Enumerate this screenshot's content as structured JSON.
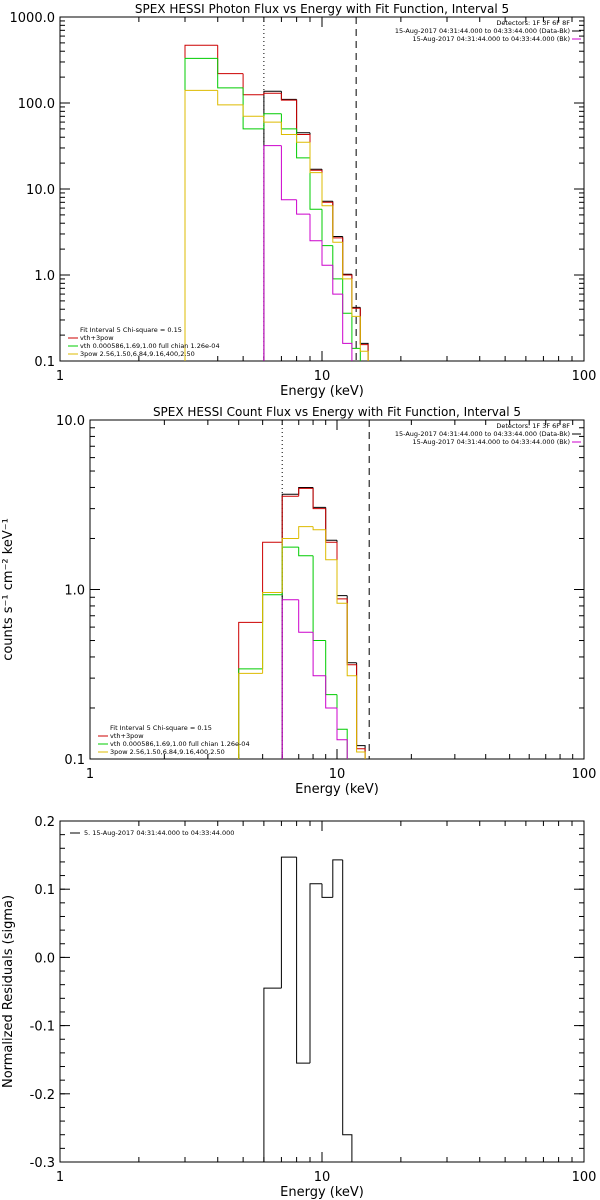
{
  "chart_data": [
    {
      "type": "line",
      "title": "SPEX HESSI Photon Flux vs Energy with Fit Function, Interval 5",
      "xlabel": "Energy (keV)",
      "ylabel": "",
      "xscale": "log",
      "yscale": "log",
      "xlim": [
        1,
        100
      ],
      "ylim": [
        0.1,
        1000
      ],
      "xticks": [
        "1",
        "10",
        "100"
      ],
      "yticks": [
        "0.1",
        "1.0",
        "10.0",
        "100.0",
        "1000.0"
      ],
      "info_lines": [
        "Detectors: 1F 3F 6F 8F",
        "15-Aug-2017 04:31:44.000 to 04:33:44.000 (Data-Bk)",
        "15-Aug-2017 04:31:44.000 to 04:33:44.000 (Bk)"
      ],
      "info_colors": [
        "",
        "#000000",
        "#cc00cc"
      ],
      "fit_lines": [
        "Fit Interval 5   Chi-square = 0.15",
        "vth+3pow",
        "vth 0.000586,1.69,1.00  full chian 1.26e-04",
        "3pow 2.56,1.50,6.84,9.16,400,2.50"
      ],
      "fit_colors": [
        "",
        "#cc0000",
        "#00cc00",
        "#ddbb00"
      ],
      "markers": [
        {
          "x": 6,
          "style": "dotted"
        },
        {
          "x": 13.5,
          "style": "dashed"
        }
      ],
      "edges": [
        3,
        4,
        5,
        6,
        7,
        8,
        9,
        10,
        11,
        12,
        13,
        14,
        15,
        16
      ],
      "series": [
        {
          "color": "#000000",
          "values": [
            null,
            null,
            null,
            137,
            110,
            45,
            17,
            7.2,
            2.8,
            1.02,
            0.42,
            0.16,
            null
          ]
        },
        {
          "color": "#cc0000",
          "values": [
            470,
            220,
            125,
            130,
            108,
            43,
            16.5,
            7.0,
            2.7,
            1.0,
            0.41,
            0.155,
            null
          ]
        },
        {
          "color": "#00cc00",
          "values": [
            330,
            150,
            50,
            75,
            50,
            23,
            5.8,
            2.2,
            0.9,
            0.36,
            0.14,
            null,
            null
          ]
        },
        {
          "color": "#ddbb00",
          "values": [
            140,
            95,
            70,
            60,
            43,
            35,
            15.5,
            6.4,
            2.4,
            0.9,
            0.33,
            0.13,
            null
          ]
        },
        {
          "color": "#cc00cc",
          "values": [
            null,
            null,
            null,
            32,
            7.5,
            5.1,
            2.5,
            1.3,
            0.6,
            0.16,
            null,
            null,
            null
          ]
        }
      ]
    },
    {
      "type": "line",
      "title": "SPEX HESSI Count Flux vs Energy with Fit Function, Interval 5",
      "xlabel": "Energy (keV)",
      "ylabel": "counts s⁻¹ cm⁻² keV⁻¹",
      "xscale": "log",
      "yscale": "log",
      "xlim": [
        1,
        100
      ],
      "ylim": [
        0.1,
        10
      ],
      "xticks": [
        "1",
        "10",
        "100"
      ],
      "yticks": [
        "0.1",
        "1.0",
        "10.0"
      ],
      "info_lines": [
        "Detectors: 1F 3F 6F 8F",
        "15-Aug-2017 04:31:44.000 to 04:33:44.000 (Data-Bk)",
        "15-Aug-2017 04:31:44.000 to 04:33:44.000 (Bk)"
      ],
      "info_colors": [
        "",
        "#000000",
        "#cc00cc"
      ],
      "fit_lines": [
        "Fit Interval 5   Chi-square = 0.15",
        "vth+3pow",
        "vth 0.000586,1.69,1.00  full chian 1.26e-04",
        "3pow 2.56,1.50,6.84,9.16,400,2.50"
      ],
      "fit_colors": [
        "",
        "#cc0000",
        "#00cc00",
        "#ddbb00"
      ],
      "markers": [
        {
          "x": 6,
          "style": "dotted"
        },
        {
          "x": 13.5,
          "style": "dashed"
        }
      ],
      "edges": [
        3,
        4,
        5,
        6,
        7,
        8,
        9,
        10,
        11,
        12,
        13,
        14,
        15,
        16
      ],
      "series": [
        {
          "color": "#000000",
          "values": [
            null,
            null,
            null,
            3.65,
            4.0,
            3.05,
            1.95,
            0.92,
            0.37,
            0.12,
            null,
            null,
            null
          ]
        },
        {
          "color": "#cc0000",
          "values": [
            null,
            0.64,
            1.9,
            3.55,
            3.95,
            3.0,
            1.9,
            0.88,
            0.36,
            0.115,
            null,
            null,
            null
          ]
        },
        {
          "color": "#00cc00",
          "values": [
            null,
            0.34,
            0.93,
            1.78,
            1.58,
            0.5,
            0.24,
            0.15,
            null,
            null,
            null,
            null,
            null
          ]
        },
        {
          "color": "#ddbb00",
          "values": [
            null,
            0.32,
            0.96,
            2.0,
            2.35,
            2.25,
            1.5,
            0.83,
            0.31,
            0.11,
            null,
            null,
            null
          ]
        },
        {
          "color": "#cc00cc",
          "values": [
            null,
            null,
            null,
            0.87,
            0.56,
            0.31,
            0.2,
            0.13,
            null,
            null,
            null,
            null,
            null
          ]
        }
      ]
    },
    {
      "type": "line",
      "title": "",
      "xlabel": "Energy (keV)",
      "ylabel": "Normalized Residuals (sigma)",
      "xscale": "log",
      "yscale": "linear",
      "xlim": [
        1,
        100
      ],
      "ylim": [
        -0.3,
        0.2
      ],
      "xticks": [
        "1",
        "10",
        "100"
      ],
      "yticks": [
        "-0.3",
        "-0.2",
        "-0.1",
        "0.0",
        "0.1",
        "0.2"
      ],
      "legend": "5. 15-Aug-2017 04:31:44.000 to 04:33:44.000",
      "edges": [
        6,
        7,
        8,
        9,
        10,
        11,
        12,
        13
      ],
      "series": [
        {
          "color": "#000000",
          "values": [
            -0.045,
            0.147,
            -0.155,
            0.108,
            0.088,
            0.143,
            -0.26
          ]
        }
      ]
    }
  ]
}
